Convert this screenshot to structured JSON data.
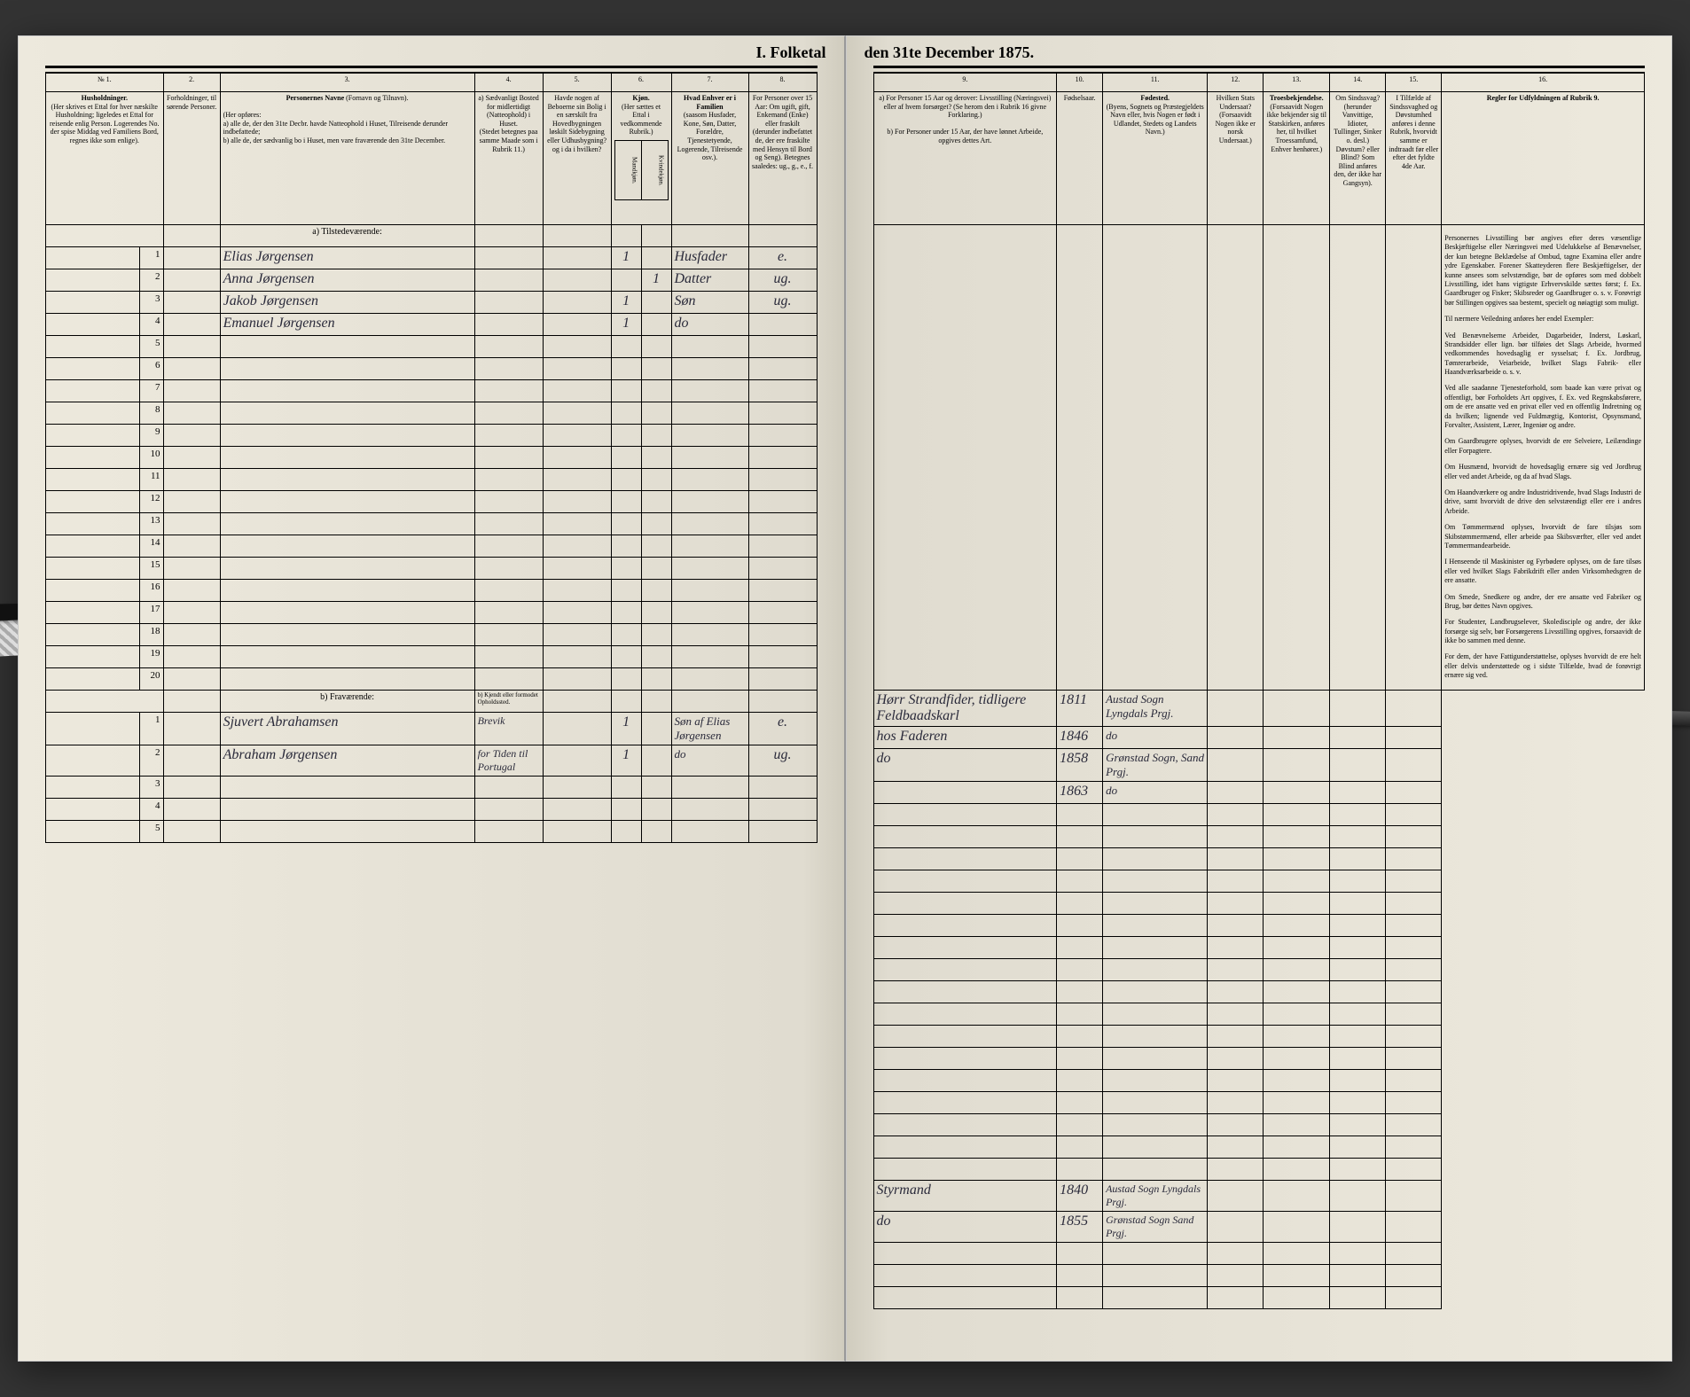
{
  "document": {
    "title_left": "I. Folketal",
    "title_right": "den 31te December 1875.",
    "year": "1875"
  },
  "columns_left": {
    "c1": {
      "num": "№ 1.",
      "head": "Husholdninger.",
      "sub": "(Her skrives et Ettal for hver næskilte Husholdning; ligeledes et Ettal for reisende enlig Person. Logerendes No. der spise Middag ved Familiens Bord, regnes ikke som enlige)."
    },
    "c2": {
      "num": "2.",
      "head": "Forholdninger, til sørende Personer."
    },
    "c3": {
      "num": "3.",
      "head": "Personernes Navne",
      "sub": "(Fornavn og Tilnavn).",
      "note_a": "a) alle de, der den 31te Decbr. havde Natteophold i Huset, Tilreisende derunder indbefattede;",
      "note_b": "b) alle de, der sædvanlig bo i Huset, men vare fraværende den 31te December."
    },
    "c4": {
      "num": "4.",
      "head": "a) Sædvanligt Bosted for midlertidigt (Natteophold) i Huset.",
      "sub": "(Stedet betegnes paa samme Maade som i Rubrik 11.)"
    },
    "c5": {
      "num": "5.",
      "head": "Havde nogen af Beboerne sin Bolig i en særskilt fra Hovedbygningen løskilt Sidebygning eller Udhusbygning? og i da i hvilken?"
    },
    "c6": {
      "num": "6.",
      "head": "Kjøn.",
      "sub": "(Her sættes et Ettal i vedkommende Rubrik.)",
      "col_a": "Mandkjøn.",
      "col_b": "Kvindekjøn."
    },
    "c7": {
      "num": "7.",
      "head": "Hvad Enhver er i Familien",
      "sub": "(saasom Husfader, Kone, Søn, Datter, Forældre, Tjenestetyende, Logerende, Tilreisende osv.)."
    },
    "c8": {
      "num": "8.",
      "head": "For Personer over 15 Aar: Om ugift, gift, Enkemand (Enke) eller fraskilt",
      "sub": "(derunder indbefattet de, der ere fraskilte med Hensyn til Bord og Seng). Betegnes saaledes: ug., g., e., f."
    }
  },
  "columns_right": {
    "c9": {
      "num": "9.",
      "head_a": "a) For Personer 15 Aar og derover: Livsstilling (Næringsvei) eller af hvem forsørget? (Se herom den i Rubrik 16 givne Forklaring.)",
      "head_b": "b) For Personer under 15 Aar, der have lønnet Arbeide, opgives dettes Art."
    },
    "c10": {
      "num": "10.",
      "head": "Fødselsaar."
    },
    "c11": {
      "num": "11.",
      "head": "Fødested.",
      "sub": "(Byens, Sognets og Præstegjeldets Navn eller, hvis Nogen er født i Udlandet, Stedets og Landets Navn.)"
    },
    "c12": {
      "num": "12.",
      "head": "Hvilken Stats Undersaat?",
      "sub": "(Forsaavidt Nogen ikke er norsk Undersaat.)"
    },
    "c13": {
      "num": "13.",
      "head": "Troesbekjendelse.",
      "sub": "(Forsaavidt Nogen ikke bekjender sig til Statskirken, anføres her, til hvilket Troessamfund, Enhver henhører.)"
    },
    "c14": {
      "num": "14.",
      "head": "Om Sindssvag?",
      "sub": "(herunder Vanvittige, Idioter, Tullinger, Sinker o. desl.) Døvstum? eller Blind? Som Blind anføres den, der ikke har Gangsyn)."
    },
    "c15": {
      "num": "15.",
      "head": "I Tilfælde af Sindssvaghed og Døvstumhed anføres i denne Rubrik, hvorvidt samme er indtraadt før eller efter det fyldte 4de Aar."
    },
    "c16": {
      "num": "16.",
      "head": "Regler for Udfyldningen af Rubrik 9."
    }
  },
  "sections": {
    "present": "a) Tilstedeværende:",
    "absent": "b) Fraværende:",
    "absent_col4": "b) Kjendt eller formodet Opholdssted."
  },
  "rows_present": [
    {
      "n": "1",
      "name": "Elias Jørgensen",
      "sex": "1",
      "rel": "Husfader",
      "status": "e.",
      "occ": "Hørr Strandfider, tidligere Feldbaadskarl",
      "year": "1811",
      "place": "Austad Sogn Lyngdals Prgj."
    },
    {
      "n": "2",
      "name": "Anna Jørgensen",
      "sex": "1",
      "sexcol": "f",
      "rel": "Datter",
      "status": "ug.",
      "occ": "hos Faderen",
      "year": "1846",
      "place": "do"
    },
    {
      "n": "3",
      "name": "Jakob Jørgensen",
      "sex": "1",
      "rel": "Søn",
      "status": "ug.",
      "occ": "do",
      "year": "1858",
      "place": "Grønstad Sogn, Sand Prgj."
    },
    {
      "n": "4",
      "name": "Emanuel Jørgensen",
      "sex": "1",
      "rel": "do",
      "status": "",
      "occ": "",
      "year": "1863",
      "place": "do"
    }
  ],
  "rows_absent": [
    {
      "n": "1",
      "name": "Sjuvert Abrahamsen",
      "place4": "Brevik",
      "sex": "1",
      "rel": "Søn af Elias Jørgensen",
      "status": "e.",
      "occ": "Styrmand",
      "year": "1840",
      "place": "Austad Sogn Lyngdals Prgj."
    },
    {
      "n": "2",
      "name": "Abraham Jørgensen",
      "place4": "for Tiden til Portugal",
      "sex": "1",
      "rel": "do",
      "status": "ug.",
      "occ": "do",
      "year": "1855",
      "place": "Grønstad Sogn Sand Prgj."
    }
  ],
  "instructions_text": {
    "p1": "Personernes Livsstilling bør angives efter deres væsentlige Beskjæftigelse eller Næringsvei med Udelukkelse af Benævnelser, der kun betegne Beklædelse af Ombud, tagne Examina eller andre ydre Egenskaber. Forener Skatteyderen flere Beskjæftigelser, der kunne ansees som selvstændige, bør de opføres som med dobbelt Livsstilling, idet hans vigtigste Erhvervskilde sættes først; f. Ex. Gaardbruger og Fisker; Skibsreder og Gaardbruger o. s. v. Forøvrigt bør Stillingen opgives saa bestemt, specielt og nøiagtigt som muligt.",
    "p2": "Til nærmere Veiledning anføres her endel Exempler:",
    "p3": "Ved Benævnelserne Arbeider, Dagarbeider, Inderst, Løskarl, Strandsidder eller lign. bør tilføies det Slags Arbeide, hvormed vedkommendes hovedsaglig er sysselsat; f. Ex. Jordbrug, Tømrerarbeide, Veiarbeide, hvilket Slags Fabrik- eller Haandværksarbeide o. s. v.",
    "p4": "Ved alle saadanne Tjenesteforhold, som baade kan være privat og offentligt, bør Forholdets Art opgives, f. Ex. ved Regnskabsførere, om de ere ansatte ved en privat eller ved en offentlig Indretning og da hvilken; lignende ved Fuldmægtig, Kontorist, Opsynsmand, Forvalter, Assistent, Lærer, Ingeniør og andre.",
    "p5": "Om Gaardbrugere oplyses, hvorvidt de ere Selveiere, Leilændinge eller Forpagtere.",
    "p6": "Om Husmænd, hvorvidt de hovedsaglig ernære sig ved Jordbrug eller ved andet Arbeide, og da af hvad Slags.",
    "p7": "Om Haandværkere og andre Industridrivende, hvad Slags Industri de drive, samt hvorvidt de drive den selvstæendigt eller ere i andres Arbeide.",
    "p8": "Om Tømmermænd oplyses, hvorvidt de fare tilsjøs som Skibstømmermænd, eller arbeide paa Skibsværfter, eller ved andet Tømmermandearbeide.",
    "p9": "I Henseende til Maskinister og Fyrbødere oplyses, om de fare tilsøs eller ved hvilket Slags Fabrikdrift eller anden Virksomhedsgren de ere ansatte.",
    "p10": "Om Smede, Snedkere og andre, der ere ansatte ved Fabriker og Brug, bør dettes Navn opgives.",
    "p11": "For Studenter, Landbrugselever, Skoledisciple og andre, der ikke forsørge sig selv, bør Forsørgerens Livsstilling opgives, forsaavidt de ikke bo sammen med denne.",
    "p12": "For dem, der have Fattigunderstøttelse, oplyses hvorvidt de ere helt eller delvis understøttede og i sidste Tilfælde, hvad de forøvrigt ernære sig ved."
  }
}
